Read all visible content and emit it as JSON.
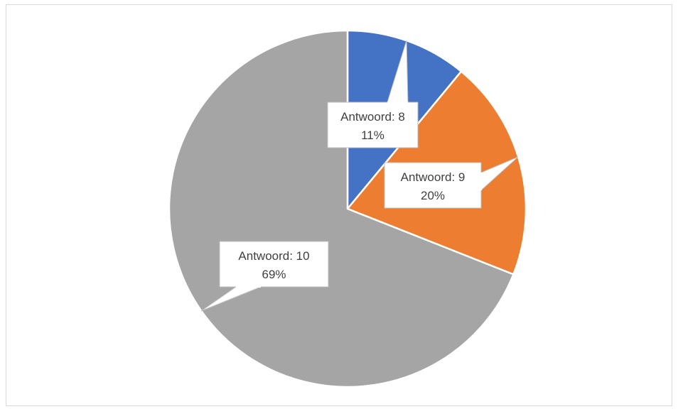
{
  "chart_data": {
    "type": "pie",
    "title": "",
    "legend": "none",
    "slices": [
      {
        "label": "Antwoord: 8",
        "value": 11,
        "display": "11%",
        "color": "#4472C4"
      },
      {
        "label": "Antwoord: 9",
        "value": 20,
        "display": "20%",
        "color": "#ED7D31"
      },
      {
        "label": "Antwoord: 10",
        "value": 69,
        "display": "69%",
        "color": "#A5A5A5"
      }
    ]
  }
}
